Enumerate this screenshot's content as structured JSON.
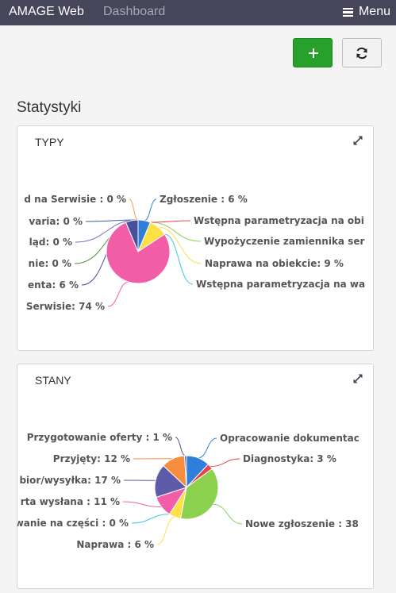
{
  "navbar": {
    "brand": "AMAGE Web",
    "link": "Dashboard",
    "menu_label": "Menu",
    "menu_icon": "hamburger-icon",
    "bg_color": "#46455a"
  },
  "toolbar": {
    "add_icon": "plus-icon",
    "refresh_icon": "refresh-icon",
    "add_color": "#27a02c"
  },
  "page": {
    "title": "Statystyki"
  },
  "panels": [
    {
      "title": "TYPY",
      "expand_icon": "expand-icon"
    },
    {
      "title": "STANY",
      "expand_icon": "expand-icon"
    }
  ],
  "chart_data": [
    {
      "type": "pie",
      "title": "TYPY",
      "labels": [
        "Zgłoszenie : 6 %",
        "Wstępna parametryzacja na obi",
        "Wypożyczenie zamiennika ser",
        "Naprawa na obiekcie: 9 %",
        "Wstępna parametryzacja na wa",
        "Serwisie: 74 %",
        "enta: 6 %",
        "nie: 0 %",
        "ląd: 0 %",
        "varia: 0 %",
        "d na Serwisie : 0 %"
      ],
      "values": [
        6,
        0,
        0,
        9,
        0,
        74,
        6,
        0,
        0,
        0,
        0
      ],
      "colors": [
        "#2f7ed8",
        "#e8434b",
        "#8bd14e",
        "#fbe046",
        "#3ec9de",
        "#f15ea7",
        "#4a4f9a",
        "#4d8b3a",
        "#7b77c6",
        "#3b5b9e",
        "#f5a04c"
      ]
    },
    {
      "type": "pie",
      "title": "STANY",
      "labels": [
        "Opracowanie dokumentac",
        "Diagnostyka: 3 %",
        "Nowe zgłoszenie : 38",
        "Naprawa : 6 %",
        "wanie na części : 0 %",
        "rta wysłana : 11 %",
        "bior/wysyłka: 17 %",
        "Przyjęty: 12 %",
        "Przygotowanie oferty : 1 %"
      ],
      "values": [
        12,
        3,
        38,
        6,
        0,
        11,
        17,
        12,
        1
      ],
      "colors": [
        "#2f7ed8",
        "#e8434b",
        "#8bd14e",
        "#fbe046",
        "#3ec9de",
        "#f15ea7",
        "#5e5ca8",
        "#f78d3f",
        "#4a4f9a"
      ]
    }
  ]
}
